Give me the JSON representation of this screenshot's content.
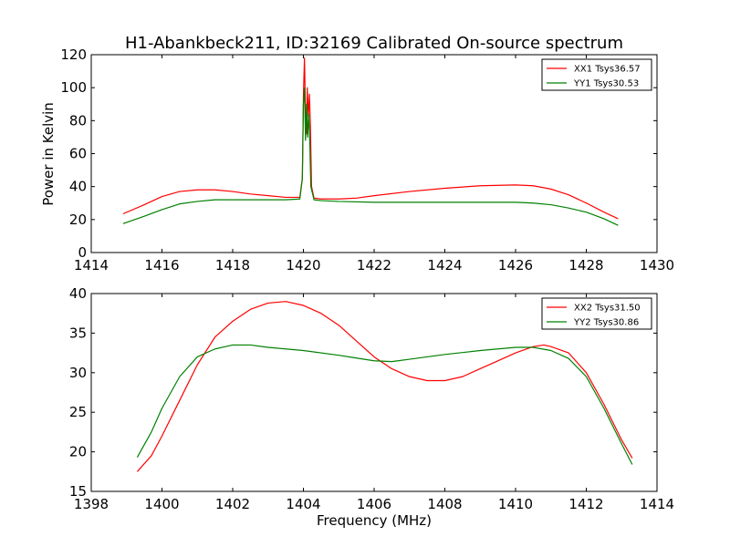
{
  "chart_data": [
    {
      "type": "line",
      "title": "H1-Abankbeck211, ID:32169 Calibrated On-source spectrum",
      "xlabel": "",
      "ylabel": "Power in Kelvin",
      "xlim": [
        1414,
        1430
      ],
      "ylim": [
        0,
        120
      ],
      "xticks": [
        "1414",
        "1416",
        "1418",
        "1420",
        "1422",
        "1424",
        "1426",
        "1428",
        "1430"
      ],
      "yticks": [
        "0",
        "20",
        "40",
        "60",
        "80",
        "100",
        "120"
      ],
      "grid": false,
      "legend_position": "top-right",
      "series": [
        {
          "name": "XX1 Tsys36.57",
          "color": "#ff0000",
          "points": [
            [
              1414.9,
              23.5
            ],
            [
              1415.5,
              29
            ],
            [
              1416,
              34
            ],
            [
              1416.5,
              37
            ],
            [
              1417,
              38
            ],
            [
              1417.5,
              38
            ],
            [
              1418,
              37
            ],
            [
              1418.5,
              35.5
            ],
            [
              1419,
              34.5
            ],
            [
              1419.5,
              33.5
            ],
            [
              1419.9,
              33.5
            ],
            [
              1419.97,
              45
            ],
            [
              1420.0,
              95
            ],
            [
              1420.03,
              118
            ],
            [
              1420.06,
              85
            ],
            [
              1420.09,
              72
            ],
            [
              1420.11,
              100
            ],
            [
              1420.14,
              82
            ],
            [
              1420.17,
              96
            ],
            [
              1420.2,
              75
            ],
            [
              1420.23,
              40
            ],
            [
              1420.3,
              33
            ],
            [
              1420.5,
              32.5
            ],
            [
              1421,
              32.5
            ],
            [
              1421.5,
              33
            ],
            [
              1422,
              34.5
            ],
            [
              1423,
              37
            ],
            [
              1424,
              39
            ],
            [
              1425,
              40.5
            ],
            [
              1426,
              41
            ],
            [
              1426.5,
              40.5
            ],
            [
              1427,
              38.5
            ],
            [
              1427.5,
              35
            ],
            [
              1428,
              30
            ],
            [
              1428.5,
              24.5
            ],
            [
              1428.9,
              20.5
            ]
          ]
        },
        {
          "name": "YY1 Tsys30.53",
          "color": "#008000",
          "points": [
            [
              1414.9,
              17.5
            ],
            [
              1415.5,
              22
            ],
            [
              1416,
              26
            ],
            [
              1416.5,
              29.5
            ],
            [
              1417,
              31
            ],
            [
              1417.5,
              32
            ],
            [
              1418,
              32
            ],
            [
              1418.5,
              32
            ],
            [
              1419,
              32
            ],
            [
              1419.5,
              32
            ],
            [
              1419.9,
              32.5
            ],
            [
              1419.97,
              45
            ],
            [
              1420.0,
              90
            ],
            [
              1420.03,
              100
            ],
            [
              1420.06,
              68
            ],
            [
              1420.09,
              90
            ],
            [
              1420.12,
              70
            ],
            [
              1420.15,
              84
            ],
            [
              1420.18,
              68
            ],
            [
              1420.21,
              40
            ],
            [
              1420.3,
              32
            ],
            [
              1420.5,
              31.5
            ],
            [
              1421,
              31
            ],
            [
              1422,
              30.5
            ],
            [
              1423,
              30.5
            ],
            [
              1424,
              30.5
            ],
            [
              1425,
              30.5
            ],
            [
              1426,
              30.5
            ],
            [
              1426.5,
              30
            ],
            [
              1427,
              29
            ],
            [
              1427.5,
              27
            ],
            [
              1428,
              24.5
            ],
            [
              1428.5,
              20.5
            ],
            [
              1428.9,
              16.5
            ]
          ]
        }
      ]
    },
    {
      "type": "line",
      "title": "",
      "xlabel": "Frequency (MHz)",
      "ylabel": "",
      "xlim": [
        1398,
        1414
      ],
      "ylim": [
        15,
        40
      ],
      "xticks": [
        "1398",
        "1400",
        "1402",
        "1404",
        "1406",
        "1408",
        "1410",
        "1412",
        "1414"
      ],
      "yticks": [
        "15",
        "20",
        "25",
        "30",
        "35",
        "40"
      ],
      "grid": false,
      "legend_position": "top-right",
      "series": [
        {
          "name": "XX2 Tsys31.50",
          "color": "#ff0000",
          "points": [
            [
              1399.3,
              17.5
            ],
            [
              1399.7,
              19.5
            ],
            [
              1400,
              22
            ],
            [
              1400.5,
              26.5
            ],
            [
              1401,
              31
            ],
            [
              1401.5,
              34.5
            ],
            [
              1402,
              36.5
            ],
            [
              1402.5,
              38
            ],
            [
              1403,
              38.8
            ],
            [
              1403.5,
              39
            ],
            [
              1404,
              38.5
            ],
            [
              1404.5,
              37.5
            ],
            [
              1405,
              36
            ],
            [
              1405.5,
              34
            ],
            [
              1406,
              32
            ],
            [
              1406.5,
              30.5
            ],
            [
              1407,
              29.5
            ],
            [
              1407.5,
              29
            ],
            [
              1408,
              29
            ],
            [
              1408.5,
              29.5
            ],
            [
              1409,
              30.5
            ],
            [
              1409.5,
              31.5
            ],
            [
              1410,
              32.5
            ],
            [
              1410.5,
              33.3
            ],
            [
              1410.8,
              33.5
            ],
            [
              1411,
              33.3
            ],
            [
              1411.5,
              32.5
            ],
            [
              1412,
              30
            ],
            [
              1412.5,
              26
            ],
            [
              1413,
              21.5
            ],
            [
              1413.3,
              19.2
            ]
          ]
        },
        {
          "name": "YY2 Tsys30.86",
          "color": "#008000",
          "points": [
            [
              1399.3,
              19.3
            ],
            [
              1399.7,
              22.5
            ],
            [
              1400,
              25.5
            ],
            [
              1400.5,
              29.5
            ],
            [
              1401,
              32
            ],
            [
              1401.5,
              33
            ],
            [
              1402,
              33.5
            ],
            [
              1402.5,
              33.5
            ],
            [
              1403,
              33.2
            ],
            [
              1404,
              32.8
            ],
            [
              1405,
              32.2
            ],
            [
              1406,
              31.5
            ],
            [
              1406.5,
              31.4
            ],
            [
              1407,
              31.7
            ],
            [
              1408,
              32.3
            ],
            [
              1409,
              32.8
            ],
            [
              1410,
              33.2
            ],
            [
              1410.5,
              33.2
            ],
            [
              1411,
              32.8
            ],
            [
              1411.5,
              31.8
            ],
            [
              1412,
              29.5
            ],
            [
              1412.5,
              25.5
            ],
            [
              1413,
              21
            ],
            [
              1413.3,
              18.4
            ]
          ]
        }
      ]
    }
  ]
}
